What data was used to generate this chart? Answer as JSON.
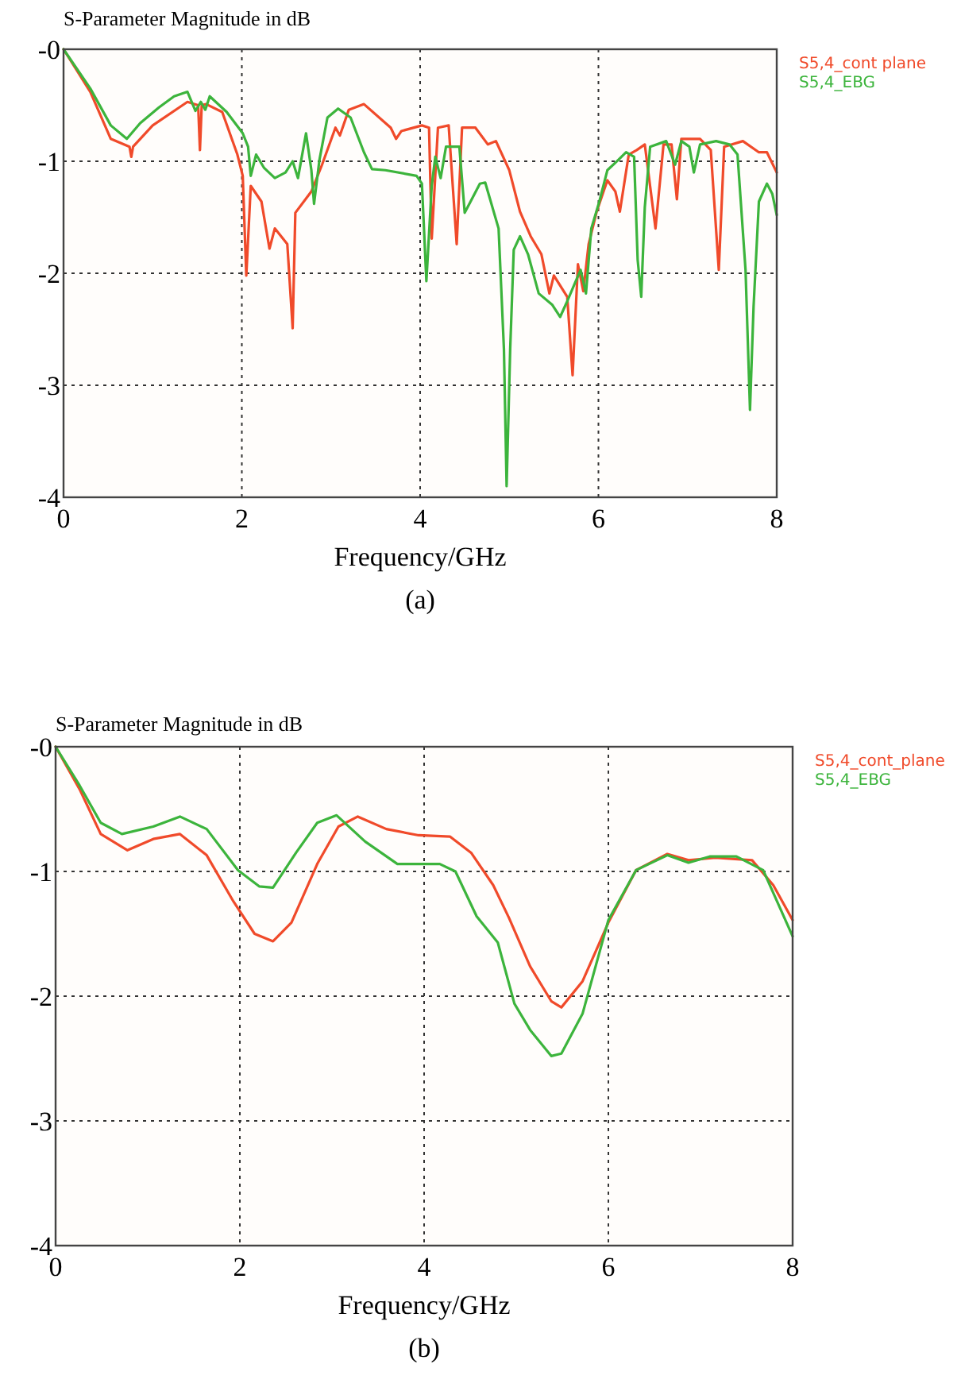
{
  "chart_data": [
    {
      "type": "line",
      "title": "S-Parameter Magnitude in dB",
      "xlabel": "Frequency/GHz",
      "annotations": [
        "(a)"
      ],
      "xlim": [
        0,
        8
      ],
      "xticks": [
        0,
        2,
        4,
        6,
        8
      ],
      "ylim": [
        -4,
        0
      ],
      "yticks": [
        {
          "value": 0,
          "label": "-0"
        },
        -1,
        -2,
        -3,
        -4
      ],
      "grid": true,
      "legend": "top right",
      "line_style": "solid",
      "series": [
        {
          "name": "S5,4_cont plane",
          "color": "#f04a2a",
          "x": [
            0,
            0.3,
            0.53,
            0.74,
            0.76,
            0.78,
            1.0,
            1.39,
            1.51,
            1.53,
            1.55,
            1.6,
            1.78,
            1.95,
            2.01,
            2.05,
            2.1,
            2.22,
            2.31,
            2.37,
            2.51,
            2.57,
            2.6,
            2.78,
            2.9,
            3.05,
            3.1,
            3.2,
            3.37,
            3.67,
            3.73,
            3.79,
            4.02,
            4.1,
            4.13,
            4.2,
            4.32,
            4.41,
            4.47,
            4.62,
            4.76,
            4.85,
            5.0,
            5.12,
            5.24,
            5.36,
            5.45,
            5.5,
            5.65,
            5.71,
            5.77,
            5.83,
            5.89,
            5.98,
            6.1,
            6.19,
            6.24,
            6.34,
            6.43,
            6.52,
            6.64,
            6.73,
            6.82,
            6.88,
            6.93,
            7.14,
            7.26,
            7.35,
            7.41,
            7.62,
            7.8,
            7.89,
            8.0
          ],
          "values": [
            0,
            -0.38,
            -0.8,
            -0.87,
            -0.96,
            -0.87,
            -0.68,
            -0.47,
            -0.5,
            -0.9,
            -0.5,
            -0.49,
            -0.56,
            -0.94,
            -1.13,
            -2.02,
            -1.22,
            -1.36,
            -1.78,
            -1.6,
            -1.74,
            -2.49,
            -1.46,
            -1.27,
            -1.03,
            -0.7,
            -0.77,
            -0.54,
            -0.49,
            -0.7,
            -0.8,
            -0.73,
            -0.68,
            -0.7,
            -1.69,
            -0.7,
            -0.68,
            -1.74,
            -0.7,
            -0.7,
            -0.85,
            -0.82,
            -1.08,
            -1.45,
            -1.67,
            -1.83,
            -2.18,
            -2.02,
            -2.21,
            -2.91,
            -1.92,
            -2.16,
            -1.74,
            -1.45,
            -1.17,
            -1.27,
            -1.45,
            -0.94,
            -0.9,
            -0.85,
            -1.6,
            -0.85,
            -0.85,
            -1.34,
            -0.8,
            -0.8,
            -0.9,
            -1.97,
            -0.87,
            -0.82,
            -0.92,
            -0.92,
            -1.1
          ]
        },
        {
          "name": "S5,4_EBG",
          "color": "#3cb43c",
          "x": [
            0,
            0.3,
            0.53,
            0.71,
            0.86,
            1.07,
            1.24,
            1.39,
            1.48,
            1.54,
            1.59,
            1.64,
            1.83,
            2.01,
            2.07,
            2.1,
            2.16,
            2.25,
            2.37,
            2.49,
            2.57,
            2.63,
            2.72,
            2.78,
            2.81,
            2.87,
            2.96,
            3.08,
            3.22,
            3.37,
            3.46,
            3.61,
            3.96,
            4.02,
            4.07,
            4.13,
            4.17,
            4.23,
            4.29,
            4.44,
            4.5,
            4.67,
            4.73,
            4.88,
            4.94,
            4.97,
            5.01,
            5.05,
            5.12,
            5.21,
            5.33,
            5.48,
            5.57,
            5.65,
            5.74,
            5.8,
            5.86,
            5.92,
            6.01,
            6.1,
            6.22,
            6.31,
            6.4,
            6.44,
            6.48,
            6.52,
            6.58,
            6.76,
            6.86,
            6.93,
            7.02,
            7.07,
            7.14,
            7.32,
            7.47,
            7.56,
            7.65,
            7.7,
            7.74,
            7.8,
            7.89,
            7.95,
            8.0
          ],
          "values": [
            0,
            -0.35,
            -0.68,
            -0.8,
            -0.66,
            -0.52,
            -0.42,
            -0.38,
            -0.55,
            -0.47,
            -0.54,
            -0.42,
            -0.56,
            -0.75,
            -0.87,
            -1.13,
            -0.94,
            -1.06,
            -1.15,
            -1.1,
            -1.0,
            -1.15,
            -0.75,
            -1.08,
            -1.38,
            -0.99,
            -0.61,
            -0.53,
            -0.61,
            -0.92,
            -1.07,
            -1.08,
            -1.13,
            -1.2,
            -2.07,
            -1.22,
            -0.96,
            -1.15,
            -0.87,
            -0.87,
            -1.46,
            -1.2,
            -1.19,
            -1.6,
            -2.68,
            -3.9,
            -2.68,
            -1.79,
            -1.67,
            -1.83,
            -2.18,
            -2.28,
            -2.39,
            -2.25,
            -2.08,
            -1.97,
            -2.18,
            -1.6,
            -1.36,
            -1.08,
            -0.99,
            -0.92,
            -0.96,
            -1.88,
            -2.21,
            -1.41,
            -0.87,
            -0.82,
            -1.03,
            -0.82,
            -0.87,
            -1.1,
            -0.85,
            -0.82,
            -0.85,
            -0.94,
            -1.97,
            -3.22,
            -2.3,
            -1.36,
            -1.2,
            -1.29,
            -1.48
          ]
        }
      ]
    },
    {
      "type": "line",
      "title": "S-Parameter Magnitude in dB",
      "xlabel": "Frequency/GHz",
      "annotations": [
        "(b)"
      ],
      "xlim": [
        0,
        8
      ],
      "xticks": [
        0,
        2,
        4,
        6,
        8
      ],
      "ylim": [
        -4,
        0
      ],
      "yticks": [
        {
          "value": 0,
          "label": "-0"
        },
        -1,
        -2,
        -3,
        -4
      ],
      "grid": true,
      "legend": "top right",
      "line_style": "solid",
      "series": [
        {
          "name": "S5,4_cont_plane",
          "color": "#f04a2a",
          "x": [
            0,
            0.26,
            0.49,
            0.78,
            1.06,
            1.35,
            1.64,
            1.93,
            2.16,
            2.36,
            2.56,
            2.84,
            3.07,
            3.28,
            3.59,
            3.94,
            4.28,
            4.51,
            4.75,
            4.92,
            5.15,
            5.38,
            5.49,
            5.72,
            6.0,
            6.3,
            6.64,
            6.87,
            7.16,
            7.56,
            7.79,
            8.0
          ],
          "values": [
            0,
            -0.34,
            -0.7,
            -0.83,
            -0.74,
            -0.7,
            -0.87,
            -1.24,
            -1.5,
            -1.56,
            -1.41,
            -0.94,
            -0.64,
            -0.56,
            -0.66,
            -0.71,
            -0.72,
            -0.85,
            -1.11,
            -1.37,
            -1.76,
            -2.04,
            -2.09,
            -1.88,
            -1.41,
            -0.99,
            -0.86,
            -0.91,
            -0.89,
            -0.91,
            -1.11,
            -1.39
          ]
        },
        {
          "name": "S5,4_EBG",
          "color": "#3cb43c",
          "x": [
            0,
            0.26,
            0.49,
            0.72,
            1.06,
            1.35,
            1.64,
            1.98,
            2.21,
            2.36,
            2.61,
            2.84,
            3.05,
            3.36,
            3.71,
            4.17,
            4.34,
            4.57,
            4.8,
            4.98,
            5.15,
            5.38,
            5.49,
            5.72,
            6.0,
            6.3,
            6.64,
            6.87,
            7.1,
            7.39,
            7.68,
            8.0
          ],
          "values": [
            0,
            -0.31,
            -0.61,
            -0.7,
            -0.64,
            -0.56,
            -0.66,
            -0.99,
            -1.12,
            -1.13,
            -0.85,
            -0.61,
            -0.55,
            -0.76,
            -0.94,
            -0.94,
            -1.0,
            -1.36,
            -1.57,
            -2.06,
            -2.27,
            -2.48,
            -2.46,
            -2.14,
            -1.39,
            -0.99,
            -0.87,
            -0.93,
            -0.88,
            -0.88,
            -0.99,
            -1.52
          ]
        }
      ]
    }
  ]
}
